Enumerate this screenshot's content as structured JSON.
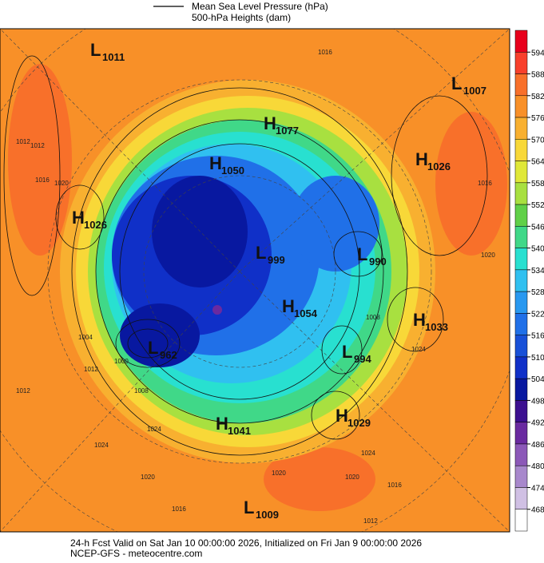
{
  "legend": {
    "lines": [
      "Mean Sea Level Pressure (hPa)",
      "500-hPa Heights (dam)"
    ]
  },
  "colorbar": {
    "levels": [
      594,
      588,
      582,
      576,
      570,
      564,
      558,
      552,
      546,
      540,
      534,
      528,
      522,
      516,
      510,
      504,
      498,
      492,
      486,
      480,
      474,
      468
    ],
    "colors": [
      "#e8001c",
      "#f8402c",
      "#f8702a",
      "#f89028",
      "#f8b030",
      "#f8d838",
      "#e0e838",
      "#a8e040",
      "#60d048",
      "#40d888",
      "#28e0d0",
      "#30c0f0",
      "#2898f0",
      "#2070e8",
      "#1850d8",
      "#1030c8",
      "#0818a0",
      "#3c1090",
      "#6a2aa0",
      "#8c58b8",
      "#a888cc",
      "#d0c0e4",
      "#ffffff"
    ]
  },
  "centers": [
    {
      "letter": "L",
      "value": 1011
    },
    {
      "letter": "L",
      "value": 1007
    },
    {
      "letter": "H",
      "value": 1077
    },
    {
      "letter": "H",
      "value": 1050
    },
    {
      "letter": "H",
      "value": 1026
    },
    {
      "letter": "H",
      "value": 1026
    },
    {
      "letter": "L",
      "value": 999
    },
    {
      "letter": "L",
      "value": 990
    },
    {
      "letter": "H",
      "value": 1054
    },
    {
      "letter": "H",
      "value": 1033
    },
    {
      "letter": "L",
      "value": 962
    },
    {
      "letter": "L",
      "value": 994
    },
    {
      "letter": "H",
      "value": 1029
    },
    {
      "letter": "H",
      "value": 1041
    },
    {
      "letter": "L",
      "value": 1009
    }
  ],
  "isobar_labels": [
    "1016",
    "1012",
    "1016",
    "1020",
    "1012",
    "1016",
    "1020",
    "1024",
    "1012",
    "1012",
    "1004",
    "1000",
    "1008",
    "1024",
    "1020",
    "1016",
    "1020",
    "1024",
    "1016",
    "1012",
    "1020",
    "1008",
    "1024"
  ],
  "footer": [
    "24-h Fcst Valid on Sat Jan 10 00:00:00 2026, Initialized on Fri Jan  9 00:00:00 2026",
    "NCEP-GFS  - meteocentre.com"
  ]
}
